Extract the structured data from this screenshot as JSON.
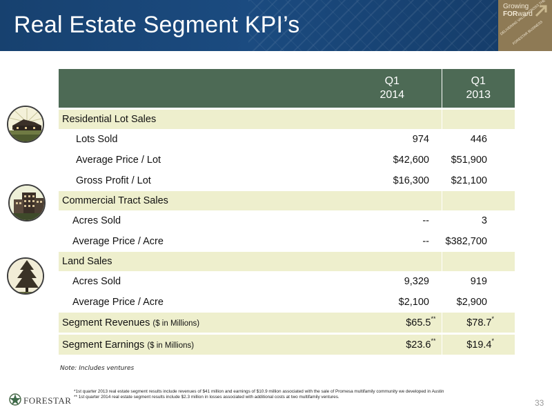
{
  "header": {
    "title": "Real Estate Segment KPI’s",
    "badge": {
      "line1": "Growing",
      "line2_bold": "FOR",
      "line2_rest": "ward",
      "tagline1": "DELIVERING VALUE ACROSS THE",
      "tagline2": "FORESTAR BUSINESS"
    }
  },
  "table": {
    "columns": [
      {
        "label_line1": "",
        "label_line2": ""
      },
      {
        "label_line1": "Q1",
        "label_line2": "2014"
      },
      {
        "label_line1": "Q1",
        "label_line2": "2013"
      }
    ],
    "sections": [
      {
        "title": "Residential Lot Sales",
        "rows": [
          {
            "label": "Lots Sold",
            "q1_2014": "974",
            "q1_2013": "446"
          },
          {
            "label": "Average Price / Lot",
            "q1_2014": "$42,600",
            "q1_2013": "$51,900"
          },
          {
            "label": "Gross Profit / Lot",
            "q1_2014": "$16,300",
            "q1_2013": "$21,100"
          }
        ]
      },
      {
        "title": "Commercial Tract Sales",
        "rows": [
          {
            "label": "Acres Sold",
            "q1_2014": "--",
            "q1_2013": "3"
          },
          {
            "label": "Average Price / Acre",
            "q1_2014": "--",
            "q1_2013": "$382,700"
          }
        ]
      },
      {
        "title": "Land Sales",
        "rows": [
          {
            "label": "Acres Sold",
            "q1_2014": "9,329",
            "q1_2013": "919"
          },
          {
            "label": "Average Price / Acre",
            "q1_2014": "$2,100",
            "q1_2013": "$2,900"
          }
        ]
      }
    ],
    "totals": [
      {
        "label": "Segment Revenues",
        "suffix": "($ in Millions)",
        "q1_2014": "$65.5",
        "q1_2014_mark": "**",
        "q1_2013": "$78.7",
        "q1_2013_mark": "*"
      },
      {
        "label": "Segment Earnings",
        "suffix": "($ in Millions)",
        "q1_2014": "$23.6",
        "q1_2014_mark": "**",
        "q1_2013": "$19.4",
        "q1_2013_mark": "*"
      }
    ]
  },
  "note": "Note: Includes ventures",
  "footnotes": [
    "*1st quarter 2013 real estate segment results include revenues of $41 million and earnings of $10.9 million associated with the sale of Promesa multifamily community we developed in Austin",
    "** 1st quarter 2014 real estate segment results include $2.3 million in losses associated with additional costs at two multifamily ventures."
  ],
  "footer": {
    "logo_text": "FORESTAR",
    "page_number": "33"
  },
  "colors": {
    "header_blue": "#1b4b80",
    "table_header_green": "#4d6a55",
    "row_highlight": "#eeefcd",
    "badge_tan": "#8e7a55"
  },
  "icons": [
    "residential-house-icon",
    "commercial-building-icon",
    "pine-tree-icon",
    "forestar-logo-icon",
    "growing-arrow-icon"
  ]
}
